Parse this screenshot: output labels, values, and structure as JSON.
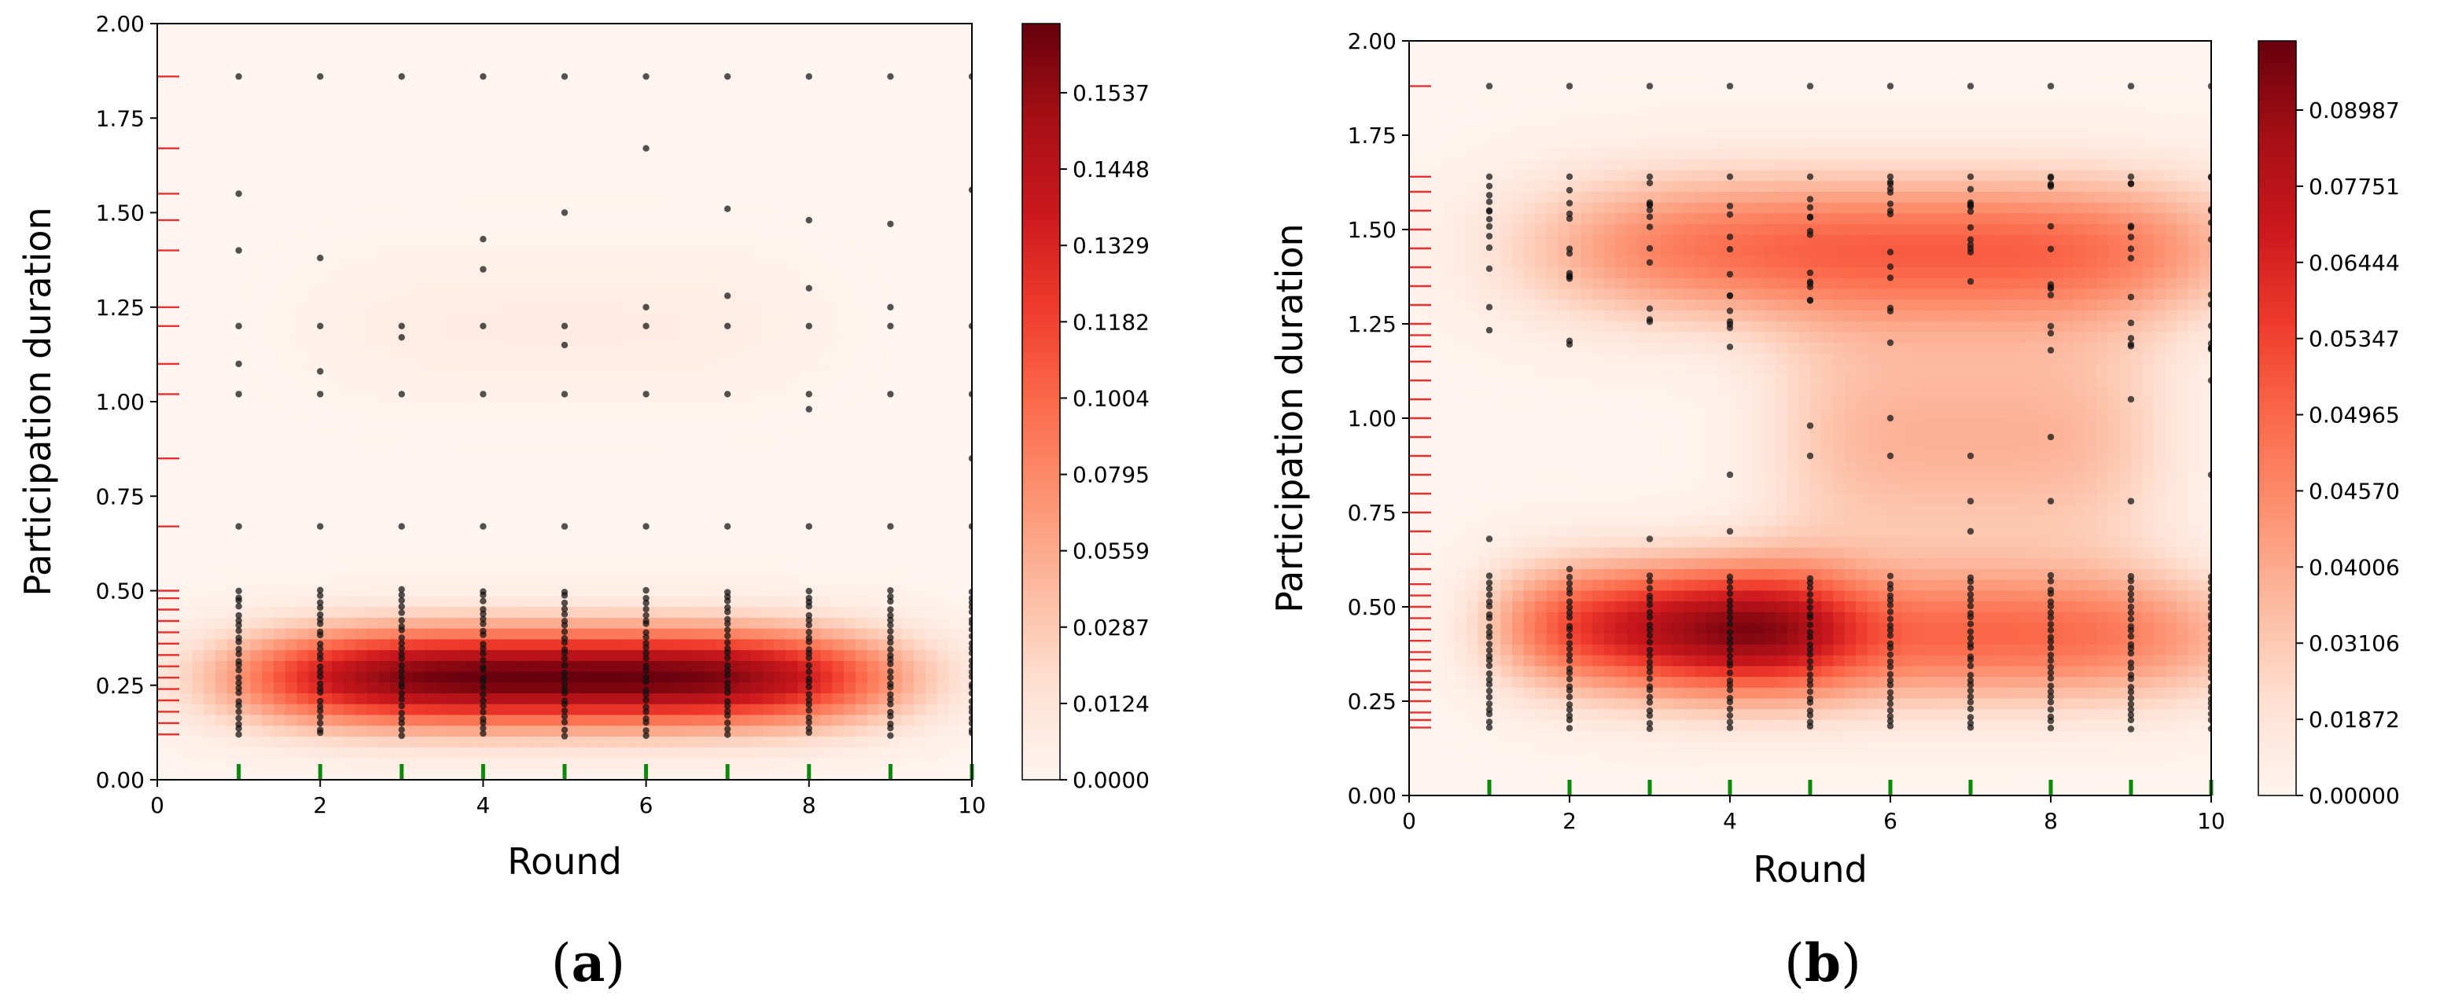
{
  "chart_data": [
    {
      "id": "a",
      "type": "heatmap",
      "panel_label_open": "(",
      "panel_label_letter": "a",
      "panel_label_close": ")",
      "xlabel": "Round",
      "ylabel": "Participation duration",
      "xlim": [
        0,
        10
      ],
      "ylim": [
        0,
        2
      ],
      "x_ticks": [
        0,
        2,
        4,
        6,
        8,
        10
      ],
      "y_ticks": [
        "0.00",
        "0.25",
        "0.50",
        "0.75",
        "1.00",
        "1.25",
        "1.50",
        "1.75",
        "2.00"
      ],
      "colorbar_ticks": [
        "0.1537",
        "0.1448",
        "0.1329",
        "0.1182",
        "0.1004",
        "0.0795",
        "0.0559",
        "0.0287",
        "0.0124",
        "0.0000"
      ],
      "colorbar_max": 0.165,
      "density": [
        {
          "x": 5,
          "y": 0.27,
          "sx": 4.0,
          "sy": 0.13,
          "w": 1.0
        },
        {
          "x": 5,
          "y": 1.2,
          "sx": 3.0,
          "sy": 0.18,
          "w": 0.06
        }
      ],
      "rounds": [
        1,
        2,
        3,
        4,
        5,
        6,
        7,
        8,
        9,
        10
      ],
      "points_dense_range": [
        0.12,
        0.5
      ],
      "points_sparse": [
        0.67,
        1.02,
        1.2,
        1.86
      ],
      "points_extra": [
        [
          1,
          1.1
        ],
        [
          1,
          1.4
        ],
        [
          1,
          1.55
        ],
        [
          2,
          1.38
        ],
        [
          2,
          1.08
        ],
        [
          3,
          1.17
        ],
        [
          4,
          1.35
        ],
        [
          4,
          1.43
        ],
        [
          5,
          1.5
        ],
        [
          5,
          1.15
        ],
        [
          6,
          1.67
        ],
        [
          6,
          1.25
        ],
        [
          7,
          1.28
        ],
        [
          7,
          1.51
        ],
        [
          8,
          1.3
        ],
        [
          8,
          0.98
        ],
        [
          8,
          1.48
        ],
        [
          9,
          1.25
        ],
        [
          9,
          1.47
        ],
        [
          10,
          0.85
        ],
        [
          10,
          1.56
        ]
      ],
      "rug_y": [
        0.12,
        0.15,
        0.18,
        0.21,
        0.24,
        0.27,
        0.3,
        0.33,
        0.36,
        0.39,
        0.42,
        0.45,
        0.48,
        0.5,
        0.67,
        0.85,
        1.02,
        1.1,
        1.2,
        1.25,
        1.4,
        1.48,
        1.55,
        1.67,
        1.86
      ]
    },
    {
      "id": "b",
      "type": "heatmap",
      "panel_label_open": "(",
      "panel_label_letter": "b",
      "panel_label_close": ")",
      "xlabel": "Round",
      "ylabel": "Participation duration",
      "xlim": [
        0,
        10
      ],
      "ylim": [
        0,
        2
      ],
      "x_ticks": [
        0,
        2,
        4,
        6,
        8,
        10
      ],
      "y_ticks": [
        "0.00",
        "0.25",
        "0.50",
        "0.75",
        "1.00",
        "1.25",
        "1.50",
        "1.75",
        "2.00"
      ],
      "colorbar_ticks": [
        "0.08987",
        "0.07751",
        "0.06444",
        "0.05347",
        "0.04965",
        "0.04570",
        "0.04006",
        "0.03106",
        "0.01872",
        "0.00000"
      ],
      "colorbar_max": 0.1,
      "density": [
        {
          "x": 3.2,
          "y": 0.45,
          "sx": 2.2,
          "sy": 0.17,
          "w": 0.55
        },
        {
          "x": 6.5,
          "y": 0.42,
          "sx": 4.0,
          "sy": 0.18,
          "w": 0.48
        },
        {
          "x": 6.0,
          "y": 1.45,
          "sx": 4.5,
          "sy": 0.2,
          "w": 0.5
        },
        {
          "x": 7.0,
          "y": 0.95,
          "sx": 2.5,
          "sy": 0.35,
          "w": 0.28
        }
      ],
      "rounds": [
        1,
        2,
        3,
        4,
        5,
        6,
        7,
        8,
        9,
        10
      ],
      "points_dense_range": [
        0.18,
        0.58
      ],
      "points_upper_range": [
        1.18,
        1.64
      ],
      "points_sparse": [
        1.88
      ],
      "points_extra": [
        [
          1,
          0.68
        ],
        [
          2,
          0.6
        ],
        [
          3,
          0.68
        ],
        [
          4,
          0.85
        ],
        [
          4,
          0.7
        ],
        [
          5,
          0.98
        ],
        [
          5,
          0.9
        ],
        [
          6,
          1.2
        ],
        [
          6,
          1.0
        ],
        [
          6,
          0.9
        ],
        [
          7,
          0.9
        ],
        [
          7,
          0.78
        ],
        [
          7,
          0.7
        ],
        [
          8,
          1.18
        ],
        [
          8,
          0.95
        ],
        [
          8,
          0.78
        ],
        [
          9,
          1.05
        ],
        [
          9,
          0.78
        ],
        [
          10,
          1.1
        ],
        [
          10,
          0.85
        ]
      ],
      "rug_y": [
        0.18,
        0.2,
        0.22,
        0.25,
        0.28,
        0.3,
        0.33,
        0.36,
        0.38,
        0.41,
        0.44,
        0.47,
        0.5,
        0.53,
        0.56,
        0.6,
        0.64,
        0.7,
        0.75,
        0.8,
        0.85,
        0.9,
        0.95,
        1.0,
        1.05,
        1.1,
        1.15,
        1.19,
        1.22,
        1.25,
        1.3,
        1.35,
        1.4,
        1.45,
        1.5,
        1.55,
        1.6,
        1.64,
        1.88
      ]
    }
  ]
}
